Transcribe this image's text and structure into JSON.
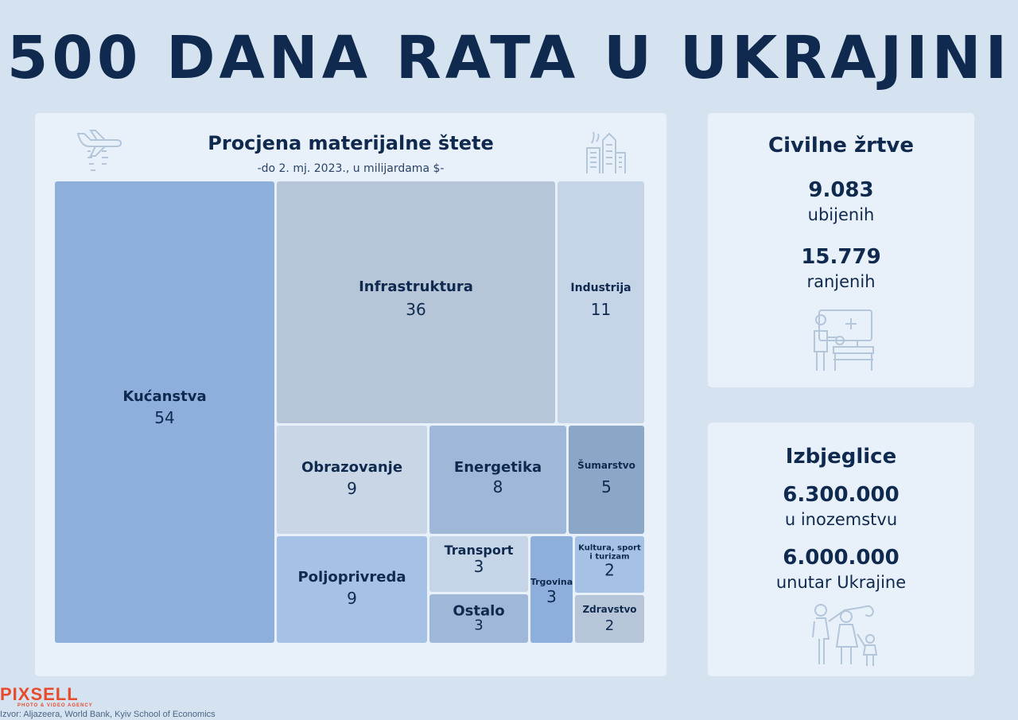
{
  "title": "500 DANA RATA U UKRAJINI",
  "chart_data": {
    "type": "treemap",
    "title": "Procjena materijalne štete",
    "subtitle": "-do 2. mj. 2023., u milijardama $-",
    "items": [
      {
        "label": "Kućanstva",
        "value": 54,
        "color": "#8eaedc"
      },
      {
        "label": "Infrastruktura",
        "value": 36,
        "color": "#b6c6d8"
      },
      {
        "label": "Industrija",
        "value": 11,
        "color": "#c5d4e6"
      },
      {
        "label": "Obrazovanje",
        "value": 9,
        "color": "#c8d6e6"
      },
      {
        "label": "Energetika",
        "value": 8,
        "color": "#9fb8d8"
      },
      {
        "label": "Šumarstvo",
        "value": 5,
        "color": "#8ba7c7"
      },
      {
        "label": "Poljoprivreda",
        "value": 9,
        "color": "#a6c1e6"
      },
      {
        "label": "Transport",
        "value": 3,
        "color": "#c5d4e6"
      },
      {
        "label": "Ostalo",
        "value": 3,
        "color": "#9fb8d8"
      },
      {
        "label": "Trgovina",
        "value": 3,
        "color": "#8eaedc"
      },
      {
        "label": "Kultura, sport i turizam",
        "value": 2,
        "color": "#a6c1e6"
      },
      {
        "label": "Zdravstvo",
        "value": 2,
        "color": "#b6c6d8"
      }
    ]
  },
  "civil": {
    "title": "Civilne žrtve",
    "killed_value": "9.083",
    "killed_label": "ubijenih",
    "wounded_value": "15.779",
    "wounded_label": "ranjenih"
  },
  "refugees": {
    "title": "Izbjeglice",
    "abroad_value": "6.300.000",
    "abroad_label": "u inozemstvu",
    "internal_value": "6.000.000",
    "internal_label": "unutar Ukrajine"
  },
  "footer": {
    "logo": "PIXSELL",
    "tagline": "PHOTO & VIDEO AGENCY",
    "source": "Izvor: Aljazeera, World Bank,  Kyiv School of Economics"
  },
  "icons": {
    "treemap_left": "plane-icon",
    "treemap_right": "damaged-buildings-icon",
    "civil": "hospital-patient-icon",
    "refugees": "refugee-family-icon"
  },
  "icon_color": "#b4c6da"
}
